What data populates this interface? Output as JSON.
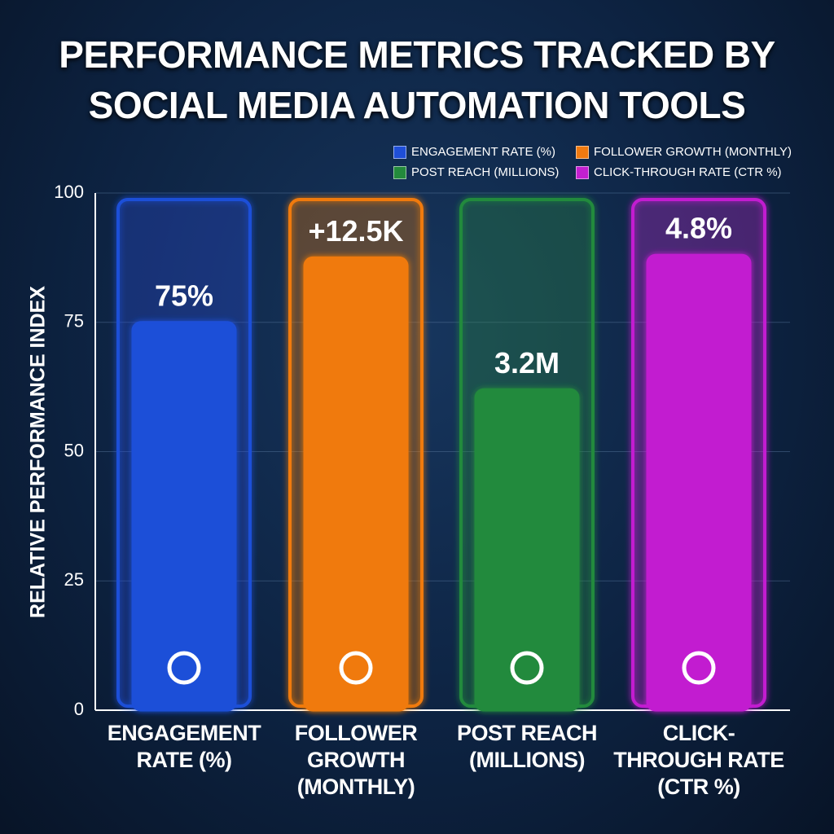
{
  "chart_data": {
    "type": "bar",
    "title": "PERFORMANCE METRICS TRACKED BY SOCIAL MEDIA AUTOMATION TOOLS",
    "ylabel": "RELATIVE PERFORMANCE INDEX",
    "categories": [
      "ENGAGEMENT RATE (%)",
      "FOLLOWER GROWTH (MONTHLY)",
      "POST REACH (MILLIONS)",
      "CLICK-THROUGH RATE (CTR %)"
    ],
    "values": [
      75,
      87.5,
      62,
      88
    ],
    "annotations": [
      "75%",
      "+12.5K",
      "3.2M",
      "4.8%"
    ],
    "colors": [
      "#1f4fd8",
      "#f07a10",
      "#238a3c",
      "#c21fd0"
    ],
    "legend": [
      "ENGAGEMENT RATE (%)",
      "FOLLOWER GROWTH (MONTHLY)",
      "POST REACH (MILLIONS)",
      "CLICK-THROUGH RATE (CTR %)"
    ],
    "ylim": [
      0,
      100
    ],
    "yticks": [
      0,
      25,
      50,
      75,
      100
    ],
    "grid": true
  }
}
